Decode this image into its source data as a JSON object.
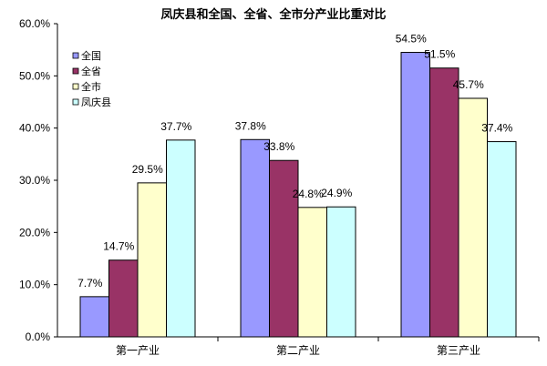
{
  "chart_data": {
    "type": "bar",
    "title": "凤庆县和全国、全省、全市分产业比重对比",
    "categories": [
      "第一产业",
      "第二产业",
      "第三产业"
    ],
    "series": [
      {
        "name": "全国",
        "values": [
          7.7,
          37.8,
          54.5
        ],
        "labels": [
          "7.7%",
          "37.8%",
          "54.5%"
        ],
        "color": "#9999ff"
      },
      {
        "name": "全省",
        "values": [
          14.7,
          33.8,
          51.5
        ],
        "labels": [
          "14.7%",
          "33.8%",
          "51.5%"
        ],
        "color": "#993366"
      },
      {
        "name": "全市",
        "values": [
          29.5,
          24.8,
          45.7
        ],
        "labels": [
          "29.5%",
          "24.8%",
          "45.7%"
        ],
        "color": "#ffffcc"
      },
      {
        "name": "凤庆县",
        "values": [
          37.7,
          24.9,
          37.4
        ],
        "labels": [
          "37.7%",
          "24.9%",
          "37.4%"
        ],
        "color": "#ccffff"
      }
    ],
    "ylim": [
      0,
      60
    ],
    "yticks": [
      0,
      10,
      20,
      30,
      40,
      50,
      60
    ],
    "ytick_labels": [
      "0.0%",
      "10.0%",
      "20.0%",
      "30.0%",
      "40.0%",
      "50.0%",
      "60.0%"
    ],
    "grid": false,
    "legend": "top-left inside plot"
  }
}
